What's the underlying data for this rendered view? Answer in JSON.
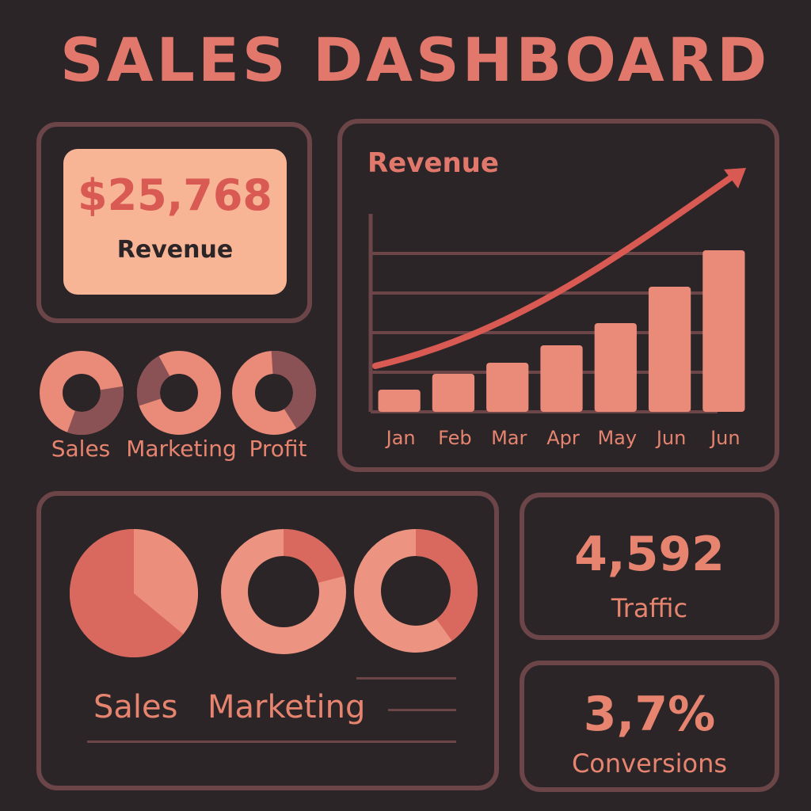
{
  "header": {
    "title": "SALES DASHBOARD"
  },
  "kpi": {
    "value": "$25,768",
    "label": "Revenue"
  },
  "mini_donuts": [
    {
      "label": "Sales",
      "share": 0.33
    },
    {
      "label": "Marketing",
      "share": 0.22
    },
    {
      "label": "Profit",
      "share": 0.42
    }
  ],
  "chart_data": {
    "type": "bar",
    "title": "Revenue",
    "categories": [
      "Jan",
      "Feb",
      "Mar",
      "Apr",
      "May",
      "Jun",
      "Jun"
    ],
    "values": [
      14,
      24,
      31,
      42,
      56,
      79,
      102
    ],
    "ylim": [
      0,
      125
    ],
    "grid": true,
    "trend_arrow": true
  },
  "bottom_donuts": [
    {
      "type": "pie",
      "share": 0.36
    },
    {
      "type": "donut",
      "share": 0.21
    },
    {
      "type": "donut",
      "share": 0.4
    }
  ],
  "legend": {
    "items": [
      "Sales",
      "Marketing"
    ]
  },
  "stats": [
    {
      "value": "4,592",
      "label": "Traffic"
    },
    {
      "value": "3,7%",
      "label": "Conversions"
    }
  ],
  "colors": {
    "background": "#2b2528",
    "panel_border": "#6b4548",
    "accent": "#e2786b",
    "segment": "#8a5254",
    "card": "#f8b596",
    "bar": "#ea8a78",
    "arrow": "#d85a53"
  }
}
